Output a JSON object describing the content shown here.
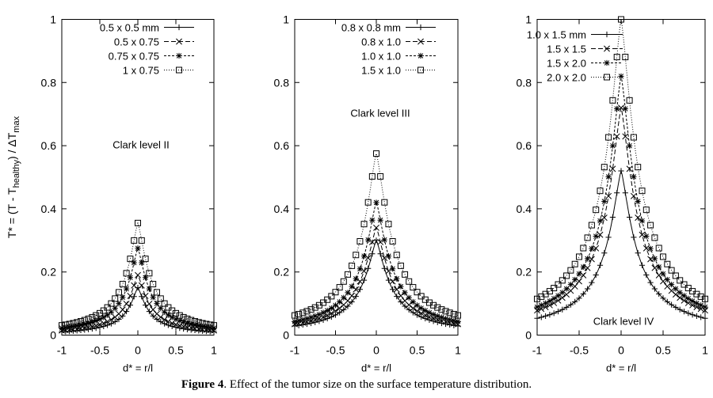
{
  "caption": {
    "label": "Figure 4",
    "text": ". Effect of the tumor size on the surface temperature distribution."
  },
  "chart_data": [
    {
      "type": "line",
      "panel_label": "Clark level II",
      "xlabel": "d* = r/l",
      "ylabel": "T* = (T - T_healthy) / ΔT_max",
      "xlim": [
        -1,
        1
      ],
      "ylim": [
        0,
        1
      ],
      "xticks": [
        "-1",
        "-0.5",
        "0",
        "0.5",
        "1"
      ],
      "yticks": [
        "0",
        "0.2",
        "0.4",
        "0.6",
        "0.8",
        "1"
      ],
      "legend": "top-right",
      "series": [
        {
          "name": "0.5 x 0.5 mm",
          "marker": "plus",
          "dash": "solid",
          "peak": 0.15,
          "width": 0.15
        },
        {
          "name": "0.5 x 0.75",
          "marker": "cross",
          "dash": "dashed",
          "peak": 0.19,
          "width": 0.16
        },
        {
          "name": "0.75 x 0.75",
          "marker": "star",
          "dash": "short-dashed",
          "peak": 0.275,
          "width": 0.165
        },
        {
          "name": "1 x 0.75",
          "marker": "square",
          "dash": "dotted",
          "peak": 0.355,
          "width": 0.175
        }
      ]
    },
    {
      "type": "line",
      "panel_label": "Clark level III",
      "xlabel": "d* = r/l",
      "ylabel": "",
      "xlim": [
        -1,
        1
      ],
      "ylim": [
        0,
        1
      ],
      "xticks": [
        "-1",
        "-0.5",
        "0",
        "0.5",
        "1"
      ],
      "yticks": [
        "0",
        "0.2",
        "0.4",
        "0.6",
        "0.8",
        "1"
      ],
      "legend": "top-right",
      "series": [
        {
          "name": "0.8 x 0.8 mm",
          "marker": "plus",
          "dash": "solid",
          "peak": 0.3,
          "width": 0.19
        },
        {
          "name": "0.8 x 1.0",
          "marker": "cross",
          "dash": "dashed",
          "peak": 0.34,
          "width": 0.2
        },
        {
          "name": "1.0 x 1.0",
          "marker": "star",
          "dash": "short-dashed",
          "peak": 0.42,
          "width": 0.2
        },
        {
          "name": "1.5 x 1.0",
          "marker": "square",
          "dash": "dotted",
          "peak": 0.575,
          "width": 0.21
        }
      ]
    },
    {
      "type": "line",
      "panel_label": "Clark level IV",
      "xlabel": "d* = r/l",
      "ylabel": "",
      "xlim": [
        -1,
        1
      ],
      "ylim": [
        0,
        1
      ],
      "xticks": [
        "-1",
        "-0.5",
        "0",
        "0.5",
        "1"
      ],
      "yticks": [
        "0",
        "0.2",
        "0.4",
        "0.6",
        "0.8",
        "1"
      ],
      "legend": "top-left",
      "series": [
        {
          "name": "1.0 x 1.5 mm",
          "marker": "plus",
          "dash": "solid",
          "peak": 0.52,
          "width": 0.2
        },
        {
          "name": "1.5 x 1.5",
          "marker": "cross",
          "dash": "dashed",
          "peak": 0.72,
          "width": 0.21
        },
        {
          "name": "1.5 x 2.0",
          "marker": "star",
          "dash": "short-dashed",
          "peak": 0.82,
          "width": 0.21
        },
        {
          "name": "2.0 x 2.0",
          "marker": "square",
          "dash": "dotted",
          "peak": 1.0,
          "width": 0.22
        }
      ]
    }
  ]
}
